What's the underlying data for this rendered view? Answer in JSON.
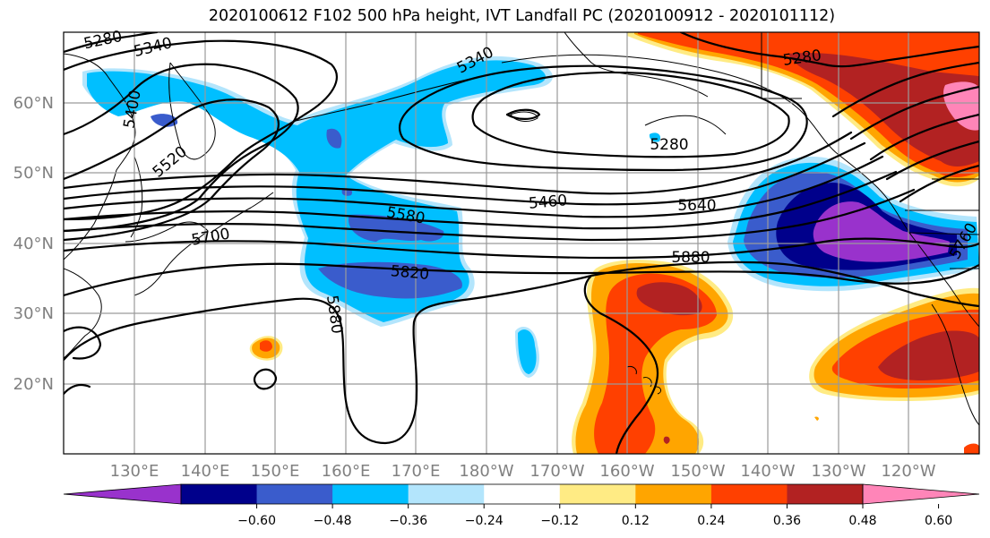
{
  "title": "2020100612 F102 500 hPa height, IVT Landfall PC (2020100912 - 2020101112)",
  "lat_labels": [
    "60°N",
    "50°N",
    "40°N",
    "30°N",
    "20°N"
  ],
  "lon_labels": [
    "130°E",
    "140°E",
    "150°E",
    "160°E",
    "170°E",
    "180°W",
    "170°W",
    "160°W",
    "150°W",
    "140°W",
    "130°W",
    "120°W"
  ],
  "contour_labels": [
    "5280",
    "5340",
    "5340",
    "5400",
    "5520",
    "5700",
    "5580",
    "5820",
    "5880",
    "5460",
    "5640",
    "5880",
    "5280",
    "5280",
    "5760"
  ],
  "colorbar": {
    "ticks": [
      "−0.60",
      "−0.48",
      "−0.36",
      "−0.24",
      "−0.12",
      "0.12",
      "0.24",
      "0.36",
      "0.48",
      "0.60"
    ],
    "colors": [
      "#9932cc",
      "#00008b",
      "#3a5ccc",
      "#00bfff",
      "#b3e5fc",
      "#ffffff",
      "#ffeb84",
      "#ffa500",
      "#ff4000",
      "#b22222",
      "#ff85b8"
    ]
  },
  "colors": {
    "purple": "#9932cc",
    "navy": "#00008b",
    "royal": "#3a5ccc",
    "sky": "#00bfff",
    "pale": "#b3e5fc",
    "yellow": "#ffeb84",
    "orange": "#ffa500",
    "redorange": "#ff4000",
    "firebrick": "#b22222",
    "pink": "#ff85b8"
  }
}
